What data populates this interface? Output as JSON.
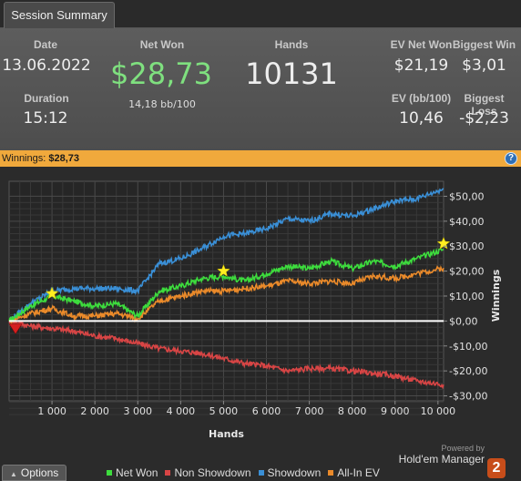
{
  "tab": {
    "label": "Session Summary"
  },
  "summary": {
    "date_label": "Date",
    "date_value": "13.06.2022",
    "duration_label": "Duration",
    "duration_value": "15:12",
    "netwon_label": "Net Won",
    "netwon_value": "$28,73",
    "netwon_sub": "14,18 bb/100",
    "hands_label": "Hands",
    "hands_value": "10131",
    "ev_net_won_label": "EV Net Won",
    "ev_net_won_value": "$21,19",
    "ev_bb_label": "EV (bb/100)",
    "ev_bb_value": "10,46",
    "biggest_win_label": "Biggest Win",
    "biggest_win_value": "$3,01",
    "biggest_loss_label": "Biggest Loss",
    "biggest_loss_value": "-$2,23",
    "netwon_color": "#7fe07f"
  },
  "winnings_bar": {
    "label": "Winnings:",
    "value": "$28,73",
    "help_icon": "?"
  },
  "chart_data": {
    "type": "line",
    "xlabel": "Hands",
    "ylabel": "Winnings",
    "xlim": [
      0,
      10131
    ],
    "ylim": [
      -32,
      56
    ],
    "x_ticks": [
      1000,
      2000,
      3000,
      4000,
      5000,
      6000,
      7000,
      8000,
      9000,
      10000
    ],
    "x_tick_labels": [
      "1 000",
      "2 000",
      "3 000",
      "4 000",
      "5 000",
      "6 000",
      "7 000",
      "8 000",
      "9 000",
      "10 000"
    ],
    "y_ticks": [
      50,
      40,
      30,
      20,
      10,
      0,
      -10,
      -20,
      -30
    ],
    "y_tick_labels": [
      "$50,00",
      "$40,00",
      "$30,00",
      "$20,00",
      "$10,00",
      "$0,00",
      "-$10,00",
      "-$20,00",
      "-$30,00"
    ],
    "grid": true,
    "series": [
      {
        "name": "Net Won",
        "color": "#3ddc3d",
        "x": [
          0,
          500,
          1000,
          1500,
          2000,
          2500,
          3000,
          3500,
          4000,
          4500,
          5000,
          5500,
          6000,
          6500,
          7000,
          7500,
          8000,
          8500,
          9000,
          9500,
          10131
        ],
        "y": [
          0,
          6,
          10,
          8,
          6,
          7,
          2,
          12,
          14,
          17,
          18,
          16,
          19,
          22,
          21,
          24,
          21,
          24,
          22,
          25,
          28.73
        ]
      },
      {
        "name": "Non Showdown",
        "color": "#d84545",
        "x": [
          0,
          500,
          1000,
          1500,
          2000,
          2500,
          3000,
          3500,
          4000,
          4500,
          5000,
          5500,
          6000,
          6500,
          7000,
          7500,
          8000,
          8500,
          9000,
          9500,
          10131
        ],
        "y": [
          0,
          -2,
          -3,
          -4,
          -6,
          -7,
          -9,
          -11,
          -12,
          -13,
          -15,
          -17,
          -18,
          -20,
          -19,
          -19,
          -20,
          -21,
          -22,
          -24,
          -25.5
        ]
      },
      {
        "name": "Showdown",
        "color": "#3a8fd6",
        "x": [
          0,
          500,
          1000,
          1500,
          2000,
          2500,
          3000,
          3500,
          4000,
          4500,
          5000,
          5500,
          6000,
          6500,
          7000,
          7500,
          8000,
          8500,
          9000,
          9500,
          10131
        ],
        "y": [
          0,
          7,
          12,
          13,
          13,
          13,
          12,
          23,
          25,
          29,
          34,
          35,
          37,
          41,
          40,
          43,
          42,
          45,
          48,
          49,
          53
        ]
      },
      {
        "name": "All-In EV",
        "color": "#ea8a2a",
        "x": [
          0,
          500,
          1000,
          1500,
          2000,
          2500,
          3000,
          3500,
          4000,
          4500,
          5000,
          5500,
          6000,
          6500,
          7000,
          7500,
          8000,
          8500,
          9000,
          9500,
          10131
        ],
        "y": [
          0,
          3,
          5,
          2,
          2,
          3,
          1,
          8,
          10,
          12,
          12,
          13,
          14,
          16,
          15,
          16,
          15,
          18,
          17,
          19,
          21.19
        ]
      }
    ],
    "markers": [
      {
        "type": "biggest-win",
        "shape": "star",
        "color": "#ffee22",
        "x": [
          1000,
          5000,
          10131
        ],
        "y": [
          11,
          20,
          31
        ]
      },
      {
        "type": "biggest-loss",
        "shape": "down-triangle",
        "color": "#d42020",
        "x": [
          150
        ],
        "y": [
          -3
        ]
      }
    ]
  },
  "legend": {
    "items": [
      {
        "label": "Net Won",
        "color": "#3ddc3d"
      },
      {
        "label": "Non Showdown",
        "color": "#d84545"
      },
      {
        "label": "Showdown",
        "color": "#3a8fd6"
      },
      {
        "label": "All-In EV",
        "color": "#ea8a2a"
      }
    ]
  },
  "options_button": {
    "label": "Options",
    "icon": "caret-up-icon"
  },
  "branding": {
    "powered_by": "Powered by",
    "name": "Hold'em Manager",
    "logo_text": "2"
  }
}
